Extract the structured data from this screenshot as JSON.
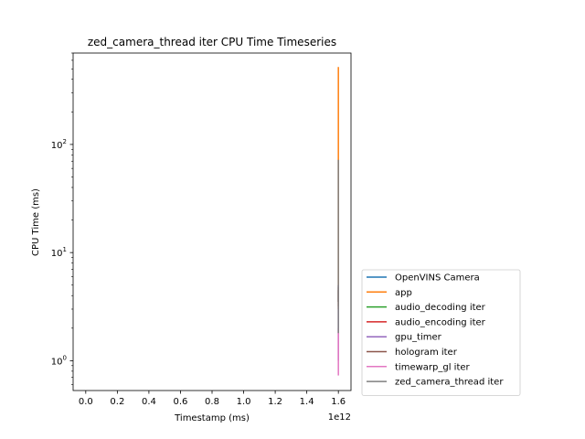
{
  "chart_data": {
    "type": "line",
    "title": "zed_camera_thread iter CPU Time Timeseries",
    "xlabel": "Timestamp (ms)",
    "ylabel": "CPU Time (ms)",
    "x_scale_label": "1e12",
    "y_scale": "log",
    "xlim": [
      -80000000000.0,
      1680000000000.0
    ],
    "ylim": [
      0.53,
      700
    ],
    "x_ticks": [
      0,
      200000000000.0,
      400000000000.0,
      600000000000.0,
      800000000000.0,
      1000000000000.0,
      1200000000000.0,
      1400000000000.0,
      1600000000000.0
    ],
    "x_tick_labels": [
      "0.0",
      "0.2",
      "0.4",
      "0.6",
      "0.8",
      "1.0",
      "1.2",
      "1.4",
      "1.6"
    ],
    "y_ticks": [
      1,
      10,
      100
    ],
    "y_tick_labels": [
      "10^0",
      "10^1",
      "10^2"
    ],
    "grid": false,
    "legend_position": "outside-bottom-right",
    "series": [
      {
        "name": "OpenVINS Camera",
        "color": "#1f77b4",
        "x": [
          1600000000000.0,
          1600000000000.0
        ],
        "y": [
          3.5,
          5.0
        ]
      },
      {
        "name": "app",
        "color": "#ff7f0e",
        "x": [
          1600000000000.0,
          1600000000000.0
        ],
        "y": [
          3.0,
          520
        ]
      },
      {
        "name": "audio_decoding iter",
        "color": "#2ca02c",
        "x": [
          1600000000000.0,
          1600000000000.0
        ],
        "y": [
          3.5,
          4.5
        ]
      },
      {
        "name": "audio_encoding iter",
        "color": "#d62728",
        "x": [
          1600000000000.0,
          1600000000000.0
        ],
        "y": [
          3.5,
          4.5
        ]
      },
      {
        "name": "gpu_timer",
        "color": "#9467bd",
        "x": [
          1600000000000.0,
          1600000000000.0
        ],
        "y": [
          1.0,
          5.0
        ]
      },
      {
        "name": "hologram iter",
        "color": "#8c564b",
        "x": [
          1600000000000.0,
          1600000000000.0
        ],
        "y": [
          3.2,
          4.8
        ]
      },
      {
        "name": "timewarp_gl iter",
        "color": "#e377c2",
        "x": [
          1600000000000.0,
          1600000000000.0
        ],
        "y": [
          0.73,
          2.0
        ]
      },
      {
        "name": "zed_camera_thread iter",
        "color": "#7f7f7f",
        "x": [
          1600000000000.0,
          1600000000000.0
        ],
        "y": [
          1.8,
          72
        ]
      }
    ]
  }
}
